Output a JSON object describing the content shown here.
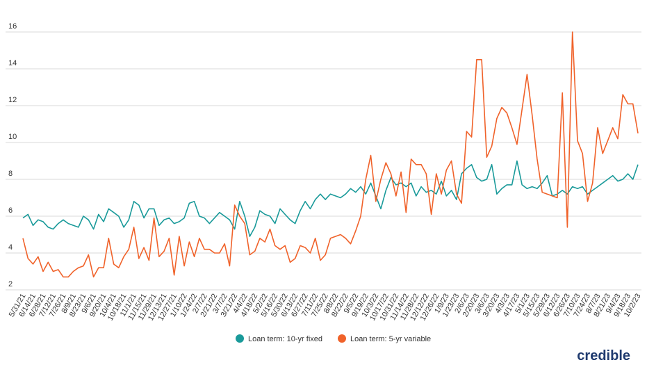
{
  "chart_data": {
    "type": "line",
    "categories": [
      "5/31/21",
      null,
      "6/14/21",
      null,
      "6/28/21",
      null,
      "7/12/21",
      null,
      "7/26/21",
      null,
      "8/9/21",
      null,
      "8/23/21",
      null,
      "9/6/21",
      null,
      "9/20/21",
      null,
      "10/4/21",
      null,
      "10/18/21",
      null,
      "11/1/21",
      null,
      "11/15/21",
      null,
      "11/29/21",
      null,
      "12/13/21",
      null,
      "12/27/21",
      null,
      "1/10/22",
      null,
      "1/24/22",
      null,
      "2/7/22",
      null,
      "2/21/22",
      null,
      "3/7/22",
      null,
      "3/21/22",
      null,
      "4/4/22",
      null,
      "4/18/22",
      null,
      "5/2/22",
      null,
      "5/16/22",
      null,
      "5/30/22",
      null,
      "6/13/22",
      null,
      "6/27/22",
      null,
      "7/11/22",
      null,
      "7/25/22",
      null,
      "8/8/22",
      null,
      "8/22/22",
      null,
      "9/5/22",
      null,
      "9/19/22",
      null,
      "10/3/22",
      null,
      "10/17/22",
      null,
      "10/31/22",
      null,
      "11/14/22",
      null,
      "11/28/22",
      null,
      "12/12/22",
      null,
      "12/26/22",
      null,
      "1/9/23",
      null,
      "1/23/23",
      null,
      "2/6/23",
      null,
      "2/20/23",
      null,
      "3/6/23",
      null,
      "3/20/23",
      null,
      "4/3/23",
      null,
      "4/17/23",
      null,
      "5/1/23",
      null,
      "5/15/23",
      null,
      "5/29/23",
      null,
      "6/12/23",
      null,
      "6/26/23",
      null,
      "7/10/23",
      null,
      "7/24/23",
      null,
      "8/7/23",
      null,
      "8/21/23",
      null,
      "9/4/23",
      null,
      "9/18/23",
      null,
      "10/2/23"
    ],
    "series": [
      {
        "name": "Loan term: 10-yr fixed",
        "color": "#1a9a9a",
        "values": [
          5.9,
          6.1,
          5.5,
          5.8,
          5.7,
          5.4,
          5.3,
          5.6,
          5.8,
          5.6,
          5.5,
          5.4,
          6.0,
          5.8,
          5.3,
          6.1,
          5.7,
          6.4,
          6.2,
          6.0,
          5.4,
          5.8,
          6.8,
          6.6,
          5.9,
          6.4,
          6.4,
          5.5,
          5.8,
          5.9,
          5.6,
          5.7,
          5.9,
          6.7,
          6.8,
          6.0,
          5.9,
          5.6,
          5.9,
          6.2,
          6.0,
          5.8,
          5.3,
          6.8,
          6.0,
          4.9,
          5.4,
          6.3,
          6.1,
          6.0,
          5.6,
          6.4,
          6.1,
          5.8,
          5.6,
          6.3,
          6.8,
          6.4,
          6.9,
          7.2,
          6.9,
          7.2,
          7.1,
          7.0,
          7.2,
          7.5,
          7.3,
          7.6,
          7.2,
          7.8,
          7.1,
          6.4,
          7.4,
          8.1,
          7.7,
          7.8,
          7.6,
          7.8,
          7.1,
          7.6,
          7.3,
          7.4,
          7.2,
          7.9,
          7.1,
          7.4,
          6.9,
          8.3,
          8.6,
          8.8,
          8.1,
          7.9,
          8.0,
          8.8,
          7.2,
          7.5,
          7.7,
          7.7,
          9.0,
          7.7,
          7.5,
          7.6,
          7.5,
          7.8,
          8.2,
          7.1,
          7.2,
          7.4,
          7.2,
          7.6,
          7.5,
          7.6,
          7.2,
          7.4,
          7.6,
          7.8,
          8.0,
          8.2,
          7.9,
          8.0,
          8.3,
          8.0,
          8.8
        ]
      },
      {
        "name": "Loan term: 5-yr variable",
        "color": "#f0622a",
        "values": [
          4.8,
          3.7,
          3.4,
          3.8,
          3.0,
          3.5,
          3.0,
          3.1,
          2.7,
          2.7,
          3.0,
          3.2,
          3.3,
          3.9,
          2.7,
          3.2,
          3.2,
          4.8,
          3.4,
          3.2,
          3.8,
          4.2,
          5.4,
          3.7,
          4.3,
          3.6,
          5.9,
          3.8,
          4.1,
          4.8,
          2.8,
          4.9,
          3.3,
          4.6,
          3.8,
          4.8,
          4.2,
          4.2,
          4.0,
          4.0,
          4.5,
          3.3,
          6.6,
          6.0,
          5.6,
          3.9,
          4.1,
          4.8,
          4.6,
          5.3,
          4.4,
          4.2,
          4.4,
          3.5,
          3.7,
          4.4,
          4.3,
          4.0,
          4.8,
          3.6,
          3.9,
          4.8,
          4.9,
          5.0,
          4.8,
          4.5,
          5.2,
          6.0,
          8.0,
          9.3,
          6.8,
          8.0,
          8.9,
          8.3,
          7.1,
          8.4,
          6.2,
          9.1,
          8.8,
          8.8,
          8.3,
          6.1,
          8.3,
          7.2,
          8.5,
          9.0,
          7.2,
          6.7,
          10.6,
          10.3,
          14.5,
          14.5,
          9.2,
          9.8,
          11.3,
          11.9,
          11.6,
          10.8,
          9.9,
          11.8,
          13.7,
          11.5,
          9.1,
          7.3,
          7.2,
          7.1,
          7.0,
          12.7,
          5.4,
          16.0,
          10.1,
          9.4,
          6.8,
          7.8,
          10.8,
          9.4,
          10.1,
          10.8,
          10.2,
          12.6,
          12.1,
          12.1,
          10.5
        ]
      }
    ],
    "ylim": [
      2,
      16
    ],
    "yticks": [
      2,
      4,
      6,
      8,
      10,
      12,
      14,
      16
    ],
    "grid": true,
    "legend": "bottom",
    "logo": "credible"
  }
}
